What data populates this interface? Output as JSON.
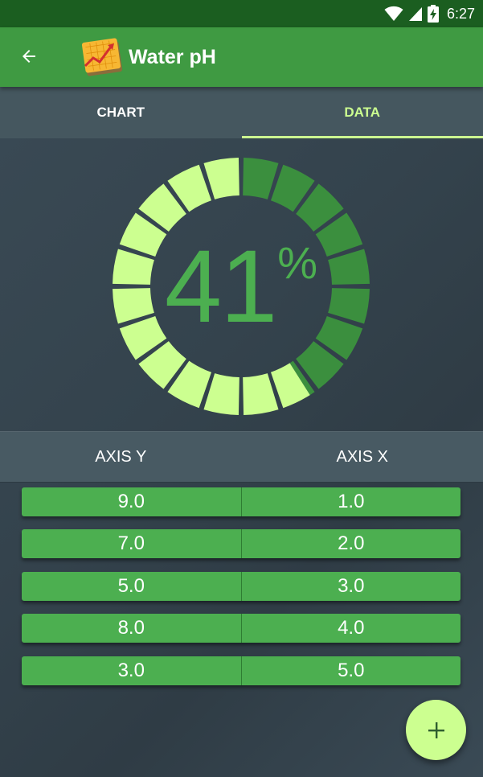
{
  "status_bar": {
    "time": "6:27",
    "icons": [
      "wifi-icon",
      "signal-icon",
      "battery-charging-icon"
    ]
  },
  "app_bar": {
    "title": "Water pH",
    "back_icon": "arrow-back-icon",
    "logo_icon": "chart-logo-icon"
  },
  "tabs": [
    {
      "label": "CHART",
      "active": false
    },
    {
      "label": "DATA",
      "active": true
    }
  ],
  "gauge": {
    "value": "41",
    "unit": "%",
    "fraction": 0.41,
    "segments": 20,
    "colors": {
      "filled": "#3b8f3e",
      "remaining": "#ccff90",
      "text": "#4caf50"
    }
  },
  "table": {
    "headers": [
      "AXIS Y",
      "AXIS X"
    ],
    "rows": [
      {
        "y": "9.0",
        "x": "1.0"
      },
      {
        "y": "7.0",
        "x": "2.0"
      },
      {
        "y": "5.0",
        "x": "3.0"
      },
      {
        "y": "8.0",
        "x": "4.0"
      },
      {
        "y": "3.0",
        "x": "5.0"
      }
    ]
  },
  "fab": {
    "icon": "add-icon"
  },
  "colors": {
    "status_bar": "#1b5e20",
    "app_bar": "#3f9a42",
    "accent": "#ccff90",
    "row_green": "#4caf50"
  }
}
